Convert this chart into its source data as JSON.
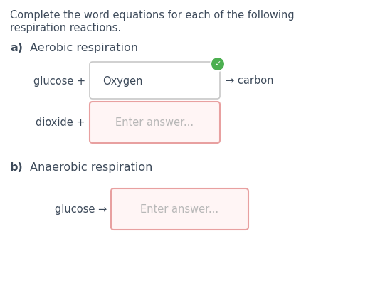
{
  "bg_color": "#ffffff",
  "text_color": "#3d4a5a",
  "title_line1": "Complete the word equations for each of the following",
  "title_line2": "respiration reactions.",
  "section_a_label": "a)",
  "section_a_title": "Aerobic respiration",
  "section_b_label": "b)",
  "section_b_title": "Anaerobic respiration",
  "glucose_plus_text": "glucose +",
  "dioxide_plus_text": "dioxide +",
  "carbon_text": "→ carbon",
  "oxygen_text": "Oxygen",
  "enter_answer_text": "Enter answer...",
  "glucose_arrow_text": "glucose →",
  "box1_border": "#c8c8c8",
  "box2_border": "#e8a0a0",
  "box2_bg": "#fff5f5",
  "box3_border": "#e8a0a0",
  "box3_bg": "#fff5f5",
  "check_color": "#4caf50",
  "check_icon_color": "#ffffff",
  "placeholder_color": "#b8b8b8",
  "font_size_title": 10.5,
  "font_size_section": 11.5,
  "font_size_body": 10.5
}
